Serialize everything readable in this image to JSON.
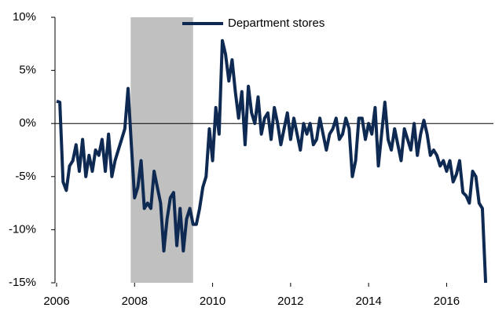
{
  "chart_data": {
    "type": "line",
    "x": [
      2006,
      2006.083,
      2006.167,
      2006.25,
      2006.333,
      2006.417,
      2006.5,
      2006.583,
      2006.667,
      2006.75,
      2006.833,
      2006.917,
      2007,
      2007.083,
      2007.167,
      2007.25,
      2007.333,
      2007.417,
      2007.5,
      2007.583,
      2007.667,
      2007.75,
      2007.833,
      2007.917,
      2008,
      2008.083,
      2008.167,
      2008.25,
      2008.333,
      2008.417,
      2008.5,
      2008.583,
      2008.667,
      2008.75,
      2008.833,
      2008.917,
      2009,
      2009.083,
      2009.167,
      2009.25,
      2009.333,
      2009.417,
      2009.5,
      2009.583,
      2009.667,
      2009.75,
      2009.833,
      2009.917,
      2010,
      2010.083,
      2010.167,
      2010.25,
      2010.333,
      2010.417,
      2010.5,
      2010.583,
      2010.667,
      2010.75,
      2010.833,
      2010.917,
      2011,
      2011.083,
      2011.167,
      2011.25,
      2011.333,
      2011.417,
      2011.5,
      2011.583,
      2011.667,
      2011.75,
      2011.833,
      2011.917,
      2012,
      2012.083,
      2012.167,
      2012.25,
      2012.333,
      2012.417,
      2012.5,
      2012.583,
      2012.667,
      2012.75,
      2012.833,
      2012.917,
      2013,
      2013.083,
      2013.167,
      2013.25,
      2013.333,
      2013.417,
      2013.5,
      2013.583,
      2013.667,
      2013.75,
      2013.833,
      2013.917,
      2014,
      2014.083,
      2014.167,
      2014.25,
      2014.333,
      2014.417,
      2014.5,
      2014.583,
      2014.667,
      2014.75,
      2014.833,
      2014.917,
      2015,
      2015.083,
      2015.167,
      2015.25,
      2015.333,
      2015.417,
      2015.5,
      2015.583,
      2015.667,
      2015.75,
      2015.833,
      2015.917,
      2016,
      2016.083,
      2016.167,
      2016.25,
      2016.333,
      2016.417,
      2016.5,
      2016.583,
      2016.667,
      2016.75,
      2016.833,
      2016.917,
      2017
    ],
    "series": [
      {
        "name": "Department stores",
        "color": "#0f2a52",
        "values": [
          2.1,
          2.0,
          -5.5,
          -6.3,
          -4,
          -3.5,
          -2,
          -4.5,
          -1.5,
          -5,
          -3,
          -4.5,
          -2.5,
          -3,
          -1.5,
          -4.5,
          -1,
          -5,
          -3.5,
          -2.5,
          -1.5,
          -0.5,
          3.3,
          -2,
          -7,
          -6,
          -3.5,
          -8,
          -7.5,
          -8,
          -4.5,
          -6,
          -7.5,
          -12,
          -9,
          -7,
          -6.5,
          -11.5,
          -8,
          -12,
          -9,
          -8,
          -9.5,
          -9.5,
          -8,
          -6,
          -5,
          -0.5,
          -3.5,
          1.5,
          -1,
          7.8,
          6.5,
          4,
          6,
          3,
          0.5,
          3,
          -2,
          3.5,
          1,
          0,
          2.5,
          -1,
          0.5,
          1,
          -1.5,
          1.5,
          0,
          -2,
          -0.5,
          1,
          -1.5,
          0.5,
          -1,
          -2.5,
          0,
          -1,
          0,
          -2,
          -1.5,
          0.5,
          -1,
          -2.5,
          -1,
          -0.5,
          0.5,
          -1.5,
          -1,
          0.5,
          -0.5,
          -5,
          -3.5,
          0.5,
          0.5,
          -1.5,
          0,
          -1,
          1.5,
          -4,
          -1,
          2,
          -1.5,
          -2.5,
          -0.5,
          -2,
          -3.5,
          -0.5,
          -1.5,
          -2.5,
          0,
          -3,
          -1,
          0.3,
          -1,
          -3,
          -2.5,
          -3,
          -4,
          -3.5,
          -4.5,
          -3.5,
          -5.5,
          -4.8,
          -3.5,
          -6.5,
          -6.8,
          -7.5,
          -4.5,
          -5,
          -7.5,
          -8,
          -15
        ]
      }
    ],
    "shade": {
      "x": [
        2007.9,
        2009.5
      ],
      "color": "#c0c0c0"
    },
    "xlim": [
      2006,
      2017.2
    ],
    "xticks": [
      2006,
      2008,
      2010,
      2012,
      2014,
      2016
    ],
    "ylim": [
      -15,
      10
    ],
    "yticks": [
      {
        "value": -15,
        "label": "-15%"
      },
      {
        "value": -10,
        "label": "-10%"
      },
      {
        "value": -5,
        "label": "-5%"
      },
      {
        "value": 0,
        "label": "0%"
      },
      {
        "value": 5,
        "label": "5%"
      },
      {
        "value": 10,
        "label": "10%"
      }
    ],
    "zero_line": true,
    "legend": "top"
  }
}
